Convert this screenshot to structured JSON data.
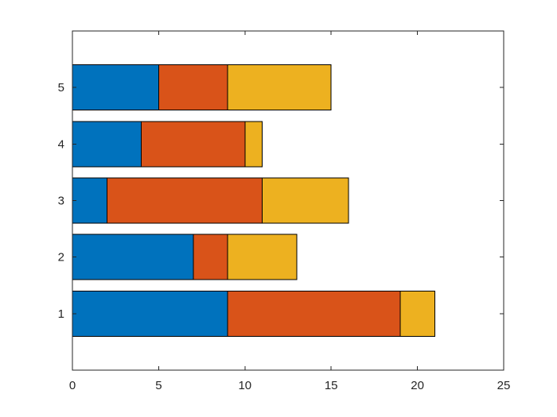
{
  "chart_data": {
    "type": "bar",
    "orientation": "horizontal",
    "stacked": true,
    "categories": [
      "1",
      "2",
      "3",
      "4",
      "5"
    ],
    "series": [
      {
        "values": [
          9,
          7,
          2,
          4,
          5
        ],
        "color": "#0072BD"
      },
      {
        "values": [
          10,
          2,
          9,
          6,
          4
        ],
        "color": "#D95319"
      },
      {
        "values": [
          2,
          4,
          5,
          1,
          6
        ],
        "color": "#EDB120"
      }
    ],
    "xlim": [
      0,
      25
    ],
    "ylim": [
      0,
      6
    ],
    "xticks": [
      0,
      5,
      10,
      15,
      20,
      25
    ],
    "yticks": [
      1,
      2,
      3,
      4,
      5
    ],
    "grid": false,
    "legend": "none",
    "title": "",
    "xlabel": "",
    "ylabel": ""
  }
}
